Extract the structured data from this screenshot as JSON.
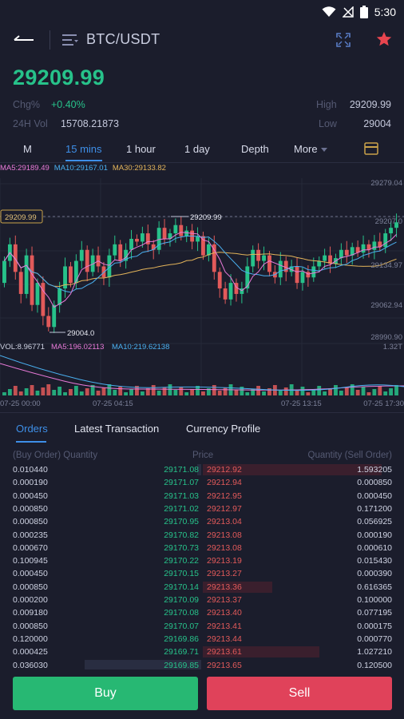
{
  "status_bar": {
    "time": "5:30"
  },
  "header": {
    "pair": "BTC/USDT"
  },
  "ticker": {
    "last_price": "29209.99",
    "chg_label": "Chg%",
    "chg_value": "+0.40%",
    "vol_label": "24H Vol",
    "vol_value": "15708.21873",
    "high_label": "High",
    "high_value": "29209.99",
    "low_label": "Low",
    "low_value": "29004"
  },
  "interval_tabs": [
    {
      "label": "M"
    },
    {
      "label": "15 mins"
    },
    {
      "label": "1 hour"
    },
    {
      "label": "1 day"
    },
    {
      "label": "Depth"
    },
    {
      "label": "More"
    }
  ],
  "active_interval": "15 mins",
  "chart": {
    "ma_legend": {
      "ma5": "MA5:29189.49",
      "ma10": "MA10:29167.01",
      "ma30": "MA30:29133.82"
    },
    "price_axis": [
      "29279.04",
      "29207.0",
      "29134.97",
      "29062.94",
      "28990.90"
    ],
    "current_price_tag": "29209.99",
    "high_marker": "29209.99",
    "low_marker": "29004.0",
    "vol_legend": {
      "vol": "VOL:8.96771",
      "ma5": "MA5:196.02113",
      "ma10": "MA10:219.62138"
    },
    "vol_axis_max": "1.32T",
    "time_axis": [
      "07-25 00:00",
      "07-25 04:15",
      "07-25 13:15",
      "07-25 17:30"
    ],
    "colors": {
      "up": "#27c28a",
      "down": "#e25a5a",
      "ma5": "#e87ad8",
      "ma10": "#4ab0f0",
      "ma30": "#e3b45a"
    }
  },
  "bottom_tabs": [
    {
      "label": "Orders"
    },
    {
      "label": "Latest Transaction"
    },
    {
      "label": "Currency Profile"
    }
  ],
  "order_book": {
    "head_buy_qty": "(Buy Order) Quantity",
    "head_price": "Price",
    "head_sell_qty": "Quantity (Sell Order)",
    "rows": [
      {
        "buy_qty": "0.010440",
        "buy_price": "29171.08",
        "sell_price": "29212.92",
        "sell_qty": "1.593205",
        "sell_depth": 0.95,
        "buy_depth": 0.02
      },
      {
        "buy_qty": "0.000190",
        "buy_price": "29171.07",
        "sell_price": "29212.94",
        "sell_qty": "0.000850",
        "sell_depth": 0.0,
        "buy_depth": 0.0
      },
      {
        "buy_qty": "0.000450",
        "buy_price": "29171.03",
        "sell_price": "29212.95",
        "sell_qty": "0.000450",
        "sell_depth": 0.0,
        "buy_depth": 0.0
      },
      {
        "buy_qty": "0.000850",
        "buy_price": "29171.02",
        "sell_price": "29212.97",
        "sell_qty": "0.171200",
        "sell_depth": 0.0,
        "buy_depth": 0.0
      },
      {
        "buy_qty": "0.000850",
        "buy_price": "29170.95",
        "sell_price": "29213.04",
        "sell_qty": "0.056925",
        "sell_depth": 0.0,
        "buy_depth": 0.0
      },
      {
        "buy_qty": "0.000235",
        "buy_price": "29170.82",
        "sell_price": "29213.08",
        "sell_qty": "0.000190",
        "sell_depth": 0.0,
        "buy_depth": 0.0
      },
      {
        "buy_qty": "0.000670",
        "buy_price": "29170.73",
        "sell_price": "29213.08",
        "sell_qty": "0.000610",
        "sell_depth": 0.0,
        "buy_depth": 0.0
      },
      {
        "buy_qty": "0.100945",
        "buy_price": "29170.22",
        "sell_price": "29213.19",
        "sell_qty": "0.015430",
        "sell_depth": 0.0,
        "buy_depth": 0.0
      },
      {
        "buy_qty": "0.000450",
        "buy_price": "29170.15",
        "sell_price": "29213.27",
        "sell_qty": "0.000390",
        "sell_depth": 0.0,
        "buy_depth": 0.0
      },
      {
        "buy_qty": "0.000850",
        "buy_price": "29170.14",
        "sell_price": "29213.36",
        "sell_qty": "0.616365",
        "sell_depth": 0.37,
        "buy_depth": 0.0
      },
      {
        "buy_qty": "0.000200",
        "buy_price": "29170.09",
        "sell_price": "29213.37",
        "sell_qty": "0.100000",
        "sell_depth": 0.0,
        "buy_depth": 0.0
      },
      {
        "buy_qty": "0.009180",
        "buy_price": "29170.08",
        "sell_price": "29213.40",
        "sell_qty": "0.077195",
        "sell_depth": 0.0,
        "buy_depth": 0.0
      },
      {
        "buy_qty": "0.000850",
        "buy_price": "29170.07",
        "sell_price": "29213.41",
        "sell_qty": "0.000175",
        "sell_depth": 0.0,
        "buy_depth": 0.0
      },
      {
        "buy_qty": "0.120000",
        "buy_price": "29169.86",
        "sell_price": "29213.44",
        "sell_qty": "0.000770",
        "sell_depth": 0.0,
        "buy_depth": 0.0
      },
      {
        "buy_qty": "0.000425",
        "buy_price": "29169.71",
        "sell_price": "29213.61",
        "sell_qty": "1.027210",
        "sell_depth": 0.62,
        "buy_depth": 0.0
      },
      {
        "buy_qty": "0.036030",
        "buy_price": "29169.85",
        "sell_price": "29213.65",
        "sell_qty": "0.120500",
        "sell_depth": 0.0,
        "buy_depth": 0.62
      }
    ]
  },
  "actions": {
    "buy_label": "Buy",
    "sell_label": "Sell"
  }
}
